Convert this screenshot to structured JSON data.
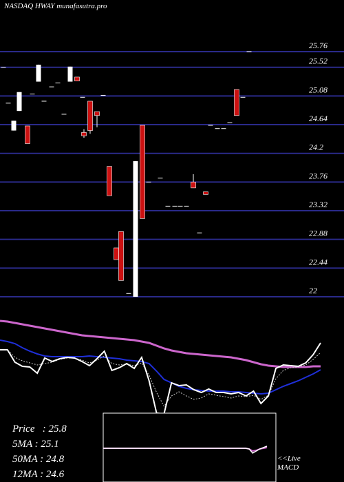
{
  "header": {
    "title": "NASDAQ HWAY munafasutra.pro"
  },
  "stats": {
    "price": "Price   : 25.8",
    "ma5": "5MA : 25.1",
    "ma50": "50MA : 24.8",
    "ma12": "12MA : 24.6"
  },
  "macd_label": {
    "line1": "<<Live",
    "line2": "MACD"
  },
  "colors": {
    "background": "#000000",
    "grid": "#2a2a8a",
    "up_candle": "#ffffff",
    "down_candle": "#cc1111",
    "price_line": "#ffffff",
    "ma_fast": "#cccccc",
    "ma_medium": "#1f2fd8",
    "ma_slow": "#cc66cc"
  },
  "chart_data": {
    "type": "candlestick",
    "y_ticks": [
      "25.76",
      "25.52",
      "25.08",
      "24.64",
      "24.2",
      "23.76",
      "23.32",
      "22.88",
      "22.44",
      "22"
    ],
    "ylim": [
      22,
      25.96
    ],
    "candles": [
      {
        "o": 25.52,
        "c": 25.52,
        "h": 25.52,
        "l": 25.52
      },
      {
        "o": 24.97,
        "c": 24.97,
        "h": 24.97,
        "l": 24.97
      },
      {
        "o": 24.55,
        "c": 24.7,
        "h": 24.7,
        "l": 24.55
      },
      {
        "o": 24.85,
        "c": 25.14,
        "h": 25.14,
        "l": 24.85
      },
      {
        "o": 24.62,
        "c": 24.35,
        "h": 24.62,
        "l": 24.35
      },
      {
        "o": 25.11,
        "c": 25.11,
        "h": 25.11,
        "l": 25.11
      },
      {
        "o": 25.3,
        "c": 25.56,
        "h": 25.56,
        "l": 25.3
      },
      {
        "o": 25.0,
        "c": 25.0,
        "h": 25.0,
        "l": 25.0
      },
      {
        "o": 25.22,
        "c": 25.22,
        "h": 25.22,
        "l": 25.22
      },
      {
        "o": 25.28,
        "c": 25.28,
        "h": 25.28,
        "l": 25.28
      },
      {
        "o": 24.8,
        "c": 24.8,
        "h": 24.8,
        "l": 24.8
      },
      {
        "o": 25.3,
        "c": 25.53,
        "h": 25.53,
        "l": 25.3
      },
      {
        "o": 25.37,
        "c": 25.31,
        "h": 25.37,
        "l": 25.31
      },
      {
        "o": 25.06,
        "c": 25.06,
        "h": 25.06,
        "l": 25.06
      },
      {
        "o": 24.52,
        "c": 24.47,
        "h": 24.57,
        "l": 24.44
      },
      {
        "o": 25.0,
        "c": 24.55,
        "h": 25.0,
        "l": 24.5
      },
      {
        "o": 24.84,
        "c": 24.78,
        "h": 24.84,
        "l": 24.6
      },
      {
        "o": 25.09,
        "c": 25.09,
        "h": 25.09,
        "l": 25.09
      },
      {
        "o": 24.0,
        "c": 23.55,
        "h": 24.0,
        "l": 23.55
      },
      {
        "o": 22.75,
        "c": 22.57,
        "h": 22.75,
        "l": 22.57
      },
      {
        "o": 23.0,
        "c": 22.25,
        "h": 23.0,
        "l": 22.25
      },
      {
        "o": 22.05,
        "c": 22.05,
        "h": 22.05,
        "l": 22.05
      },
      {
        "o": 22.0,
        "c": 24.08,
        "h": 24.08,
        "l": 22.0
      },
      {
        "o": 24.63,
        "c": 23.2,
        "h": 24.63,
        "l": 23.2
      },
      {
        "o": 23.76,
        "c": 23.76,
        "h": 23.76,
        "l": 23.76
      },
      {
        "o": 23.82,
        "c": 23.82,
        "h": 23.82,
        "l": 23.82
      },
      {
        "o": 23.39,
        "c": 23.39,
        "h": 23.39,
        "l": 23.39
      },
      {
        "o": 23.39,
        "c": 23.39,
        "h": 23.39,
        "l": 23.39
      },
      {
        "o": 23.39,
        "c": 23.39,
        "h": 23.39,
        "l": 23.39
      },
      {
        "o": 23.39,
        "c": 23.39,
        "h": 23.39,
        "l": 23.39
      },
      {
        "o": 23.76,
        "c": 23.67,
        "h": 23.88,
        "l": 23.67
      },
      {
        "o": 22.98,
        "c": 22.98,
        "h": 22.98,
        "l": 22.98
      },
      {
        "o": 23.61,
        "c": 23.57,
        "h": 23.61,
        "l": 23.57
      },
      {
        "o": 24.63,
        "c": 24.63,
        "h": 24.63,
        "l": 24.63
      },
      {
        "o": 24.58,
        "c": 24.58,
        "h": 24.58,
        "l": 24.58
      },
      {
        "o": 24.58,
        "c": 24.58,
        "h": 24.58,
        "l": 24.58
      },
      {
        "o": 24.67,
        "c": 24.67,
        "h": 24.67,
        "l": 24.67
      },
      {
        "o": 25.18,
        "c": 24.78,
        "h": 25.18,
        "l": 24.78
      },
      {
        "o": 25.06,
        "c": 25.06,
        "h": 25.06,
        "l": 25.06
      },
      {
        "o": 25.76,
        "c": 25.76,
        "h": 25.76,
        "l": 25.76
      }
    ],
    "candle_x": [
      5,
      12,
      20,
      28,
      40,
      47,
      56,
      64,
      75,
      84,
      93,
      102,
      112,
      120,
      122,
      131,
      141,
      150,
      159,
      169,
      176,
      187,
      197,
      207,
      216,
      233,
      244,
      254,
      262,
      271,
      281,
      290,
      299,
      306,
      316,
      325,
      334,
      344,
      353,
      362
    ],
    "indicator_panel": {
      "price_line": [
        508,
        508,
        526,
        532,
        533,
        542,
        520,
        525,
        521,
        519,
        520,
        525,
        531,
        521,
        510,
        538,
        534,
        528,
        535,
        519,
        553,
        600,
        601,
        556,
        560,
        559,
        566,
        570,
        565,
        570,
        570,
        572,
        570,
        575,
        568,
        586,
        575,
        535,
        530,
        531,
        532,
        527,
        515,
        498
      ],
      "ma_fast": [
        508,
        508,
        519,
        524,
        527,
        530,
        528,
        526,
        522,
        520,
        520,
        523,
        527,
        523,
        517,
        528,
        530,
        529,
        531,
        527,
        545,
        570,
        590,
        575,
        569,
        575,
        580,
        578,
        572,
        574,
        576,
        578,
        575,
        576,
        574,
        580,
        574,
        550,
        538,
        534,
        533,
        530,
        522,
        512
      ],
      "ma_medium": [
        494,
        496,
        499,
        505,
        510,
        514,
        517,
        518,
        518,
        518,
        518,
        518,
        517,
        518,
        519,
        520,
        521,
        523,
        524,
        525,
        528,
        539,
        551,
        556,
        561,
        564,
        566,
        567,
        568,
        568,
        568,
        569,
        569,
        570,
        571,
        572,
        571,
        566,
        561,
        557,
        553,
        548,
        543,
        537
      ],
      "ma_slow": [
        466,
        467,
        469,
        471,
        473,
        475,
        477,
        479,
        481,
        483,
        485,
        487,
        488,
        489,
        490,
        491,
        492,
        493,
        494,
        496,
        498,
        502,
        506,
        509,
        511,
        513,
        514,
        515,
        516,
        517,
        518,
        519,
        521,
        523,
        526,
        529,
        531,
        532,
        533,
        533,
        533,
        533,
        532,
        532
      ]
    },
    "macd_panel": {
      "macd_line": [
        651,
        651,
        651,
        651,
        651,
        651,
        651,
        651,
        651,
        651,
        651,
        651,
        651,
        651,
        651,
        651,
        651,
        651,
        651,
        651,
        651,
        651,
        651,
        651,
        651,
        651,
        651,
        651,
        651,
        651,
        651,
        651,
        651,
        651,
        651,
        651,
        651,
        651,
        651,
        651,
        651,
        652,
        658,
        655,
        652,
        650,
        648
      ],
      "signal_line": [
        651,
        651,
        651,
        651,
        651,
        651,
        651,
        651,
        651,
        651,
        651,
        651,
        651,
        651,
        651,
        651,
        651,
        651,
        651,
        651,
        651,
        651,
        651,
        651,
        651,
        651,
        651,
        651,
        651,
        651,
        651,
        651,
        651,
        651,
        651,
        651,
        651,
        651,
        651,
        651,
        651,
        652,
        655,
        654,
        652,
        651,
        650
      ]
    }
  }
}
